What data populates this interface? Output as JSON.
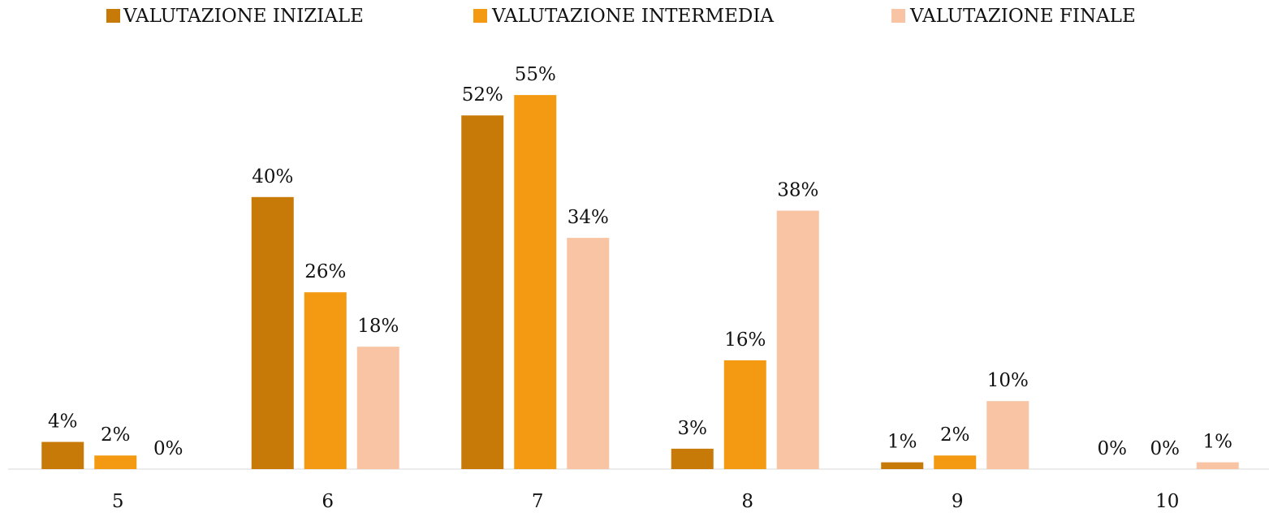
{
  "chart_data": {
    "type": "bar",
    "categories": [
      "5",
      "6",
      "7",
      "8",
      "9",
      "10"
    ],
    "series": [
      {
        "name": "VALUTAZIONE INIZIALE",
        "color": "#c77a07",
        "values": [
          4,
          40,
          52,
          3,
          1,
          0
        ],
        "value_labels": [
          "4%",
          "40%",
          "52%",
          "3%",
          "1%",
          "0%"
        ]
      },
      {
        "name": "VALUTAZIONE INTERMEDIA",
        "color": "#f39a12",
        "values": [
          2,
          26,
          55,
          16,
          2,
          0
        ],
        "value_labels": [
          "2%",
          "26%",
          "55%",
          "16%",
          "2%",
          "0%"
        ]
      },
      {
        "name": "VALUTAZIONE FINALE",
        "color": "#f8c4a3",
        "values": [
          0,
          18,
          34,
          38,
          10,
          1
        ],
        "value_labels": [
          "0%",
          "18%",
          "34%",
          "38%",
          "10%",
          "1%"
        ]
      }
    ],
    "legend": "top"
  }
}
